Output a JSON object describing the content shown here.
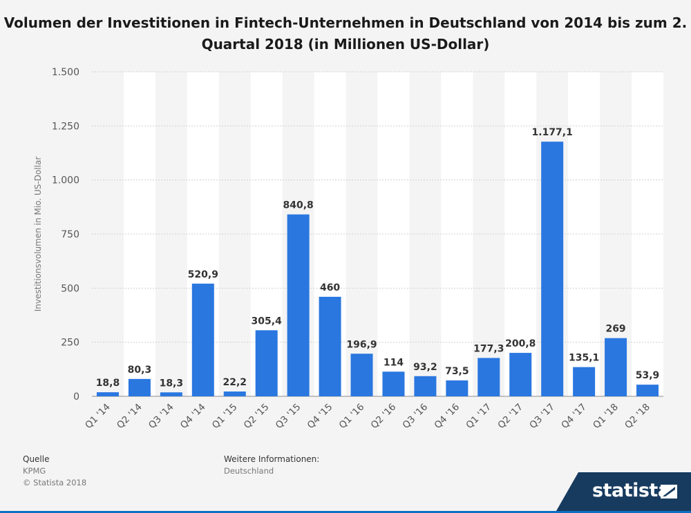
{
  "title": "Volumen der Investitionen in Fintech-Unternehmen in Deutschland von 2014 bis zum 2. Quartal 2018 (in Millionen US-Dollar)",
  "source": {
    "heading": "Quelle",
    "name": "KPMG",
    "copyright": "© Statista 2018"
  },
  "info": {
    "heading": "Weitere Informationen:",
    "text": "Deutschland"
  },
  "brand": {
    "name": "statista",
    "color": "#173b5f"
  },
  "chart_data": {
    "type": "bar",
    "ylabel": "Investitionsvolumen in Mio. US-Dollar",
    "xlabel": "",
    "ylim": [
      0,
      1500
    ],
    "yticks": [
      0,
      250,
      500,
      750,
      1000,
      1250,
      1500
    ],
    "ytick_labels": [
      "0",
      "250",
      "500",
      "750",
      "1.000",
      "1.250",
      "1.500"
    ],
    "categories": [
      "Q1 '14",
      "Q2 '14",
      "Q3 '14",
      "Q4 '14",
      "Q1 '15",
      "Q2 '15",
      "Q3 '15",
      "Q4 '15",
      "Q1 '16",
      "Q2 '16",
      "Q3 '16",
      "Q4 '16",
      "Q1 '17",
      "Q2 '17",
      "Q3 '17",
      "Q4 '17",
      "Q1 '18",
      "Q2 '18"
    ],
    "values": [
      18.8,
      80.3,
      18.3,
      520.9,
      22.2,
      305.4,
      840.8,
      460,
      196.9,
      114,
      93.2,
      73.5,
      177.3,
      200.8,
      1177.1,
      135.1,
      269,
      53.9
    ],
    "value_labels": [
      "18,8",
      "80,3",
      "18,3",
      "520,9",
      "22,2",
      "305,4",
      "840,8",
      "460",
      "196,9",
      "114",
      "93,2",
      "73,5",
      "177,3",
      "200,8",
      "1.177,1",
      "135,1",
      "269",
      "53,9"
    ],
    "bar_color": "#2a77e0",
    "grid": true
  }
}
